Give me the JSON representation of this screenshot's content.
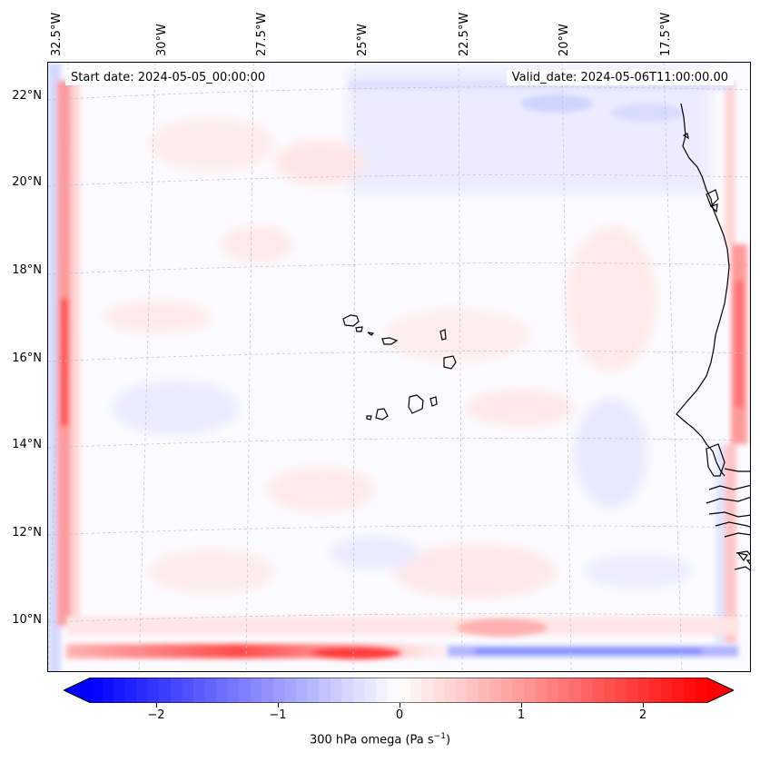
{
  "map": {
    "start_date": "Start date: 2024-05-05_00:00:00",
    "valid_date": "Valid_date: 2024-05-06T11:00:00.00",
    "lon_labels": [
      "32.5°W",
      "30°W",
      "27.5°W",
      "25°W",
      "22.5°W",
      "20°W",
      "17.5°W"
    ],
    "lat_labels": [
      "22°N",
      "20°N",
      "18°N",
      "16°N",
      "14°N",
      "12°N",
      "10°N"
    ],
    "field": "300 hPa omega",
    "colors": {
      "negative": "#0000ff",
      "zero": "#ffffff",
      "positive": "#ff0000",
      "coast": "#000000"
    }
  },
  "colorbar": {
    "title_prefix": "300 hPa omega (Pa s",
    "title_exp": "−1",
    "title_suffix": ")",
    "ticks": [
      "−2",
      "−1",
      "0",
      "1",
      "2"
    ],
    "range": [
      -2.7,
      2.7
    ]
  }
}
